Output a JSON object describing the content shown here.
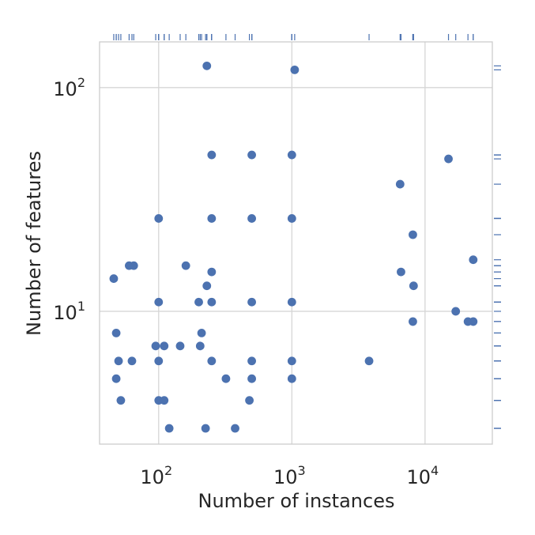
{
  "chart_data": {
    "type": "scatter",
    "title": "",
    "xlabel": "Number of instances",
    "ylabel": "Number of features",
    "xscale": "log",
    "yscale": "log",
    "xlim": [
      36,
      32000
    ],
    "ylim": [
      2.55,
      160
    ],
    "grid": true,
    "legend": "none",
    "marginal_rugs": [
      "top",
      "right"
    ],
    "x_ticks": [
      {
        "value": 100,
        "base": "10",
        "exp": "2"
      },
      {
        "value": 1000,
        "base": "10",
        "exp": "3"
      },
      {
        "value": 10000,
        "base": "10",
        "exp": "4"
      }
    ],
    "y_ticks": [
      {
        "value": 10,
        "base": "10",
        "exp": "1"
      },
      {
        "value": 100,
        "base": "10",
        "exp": "2"
      }
    ],
    "color": "#4c72b0",
    "x": [
      230,
      1050,
      250,
      500,
      1000,
      6500,
      15000,
      100,
      250,
      500,
      1000,
      8100,
      60,
      65,
      160,
      250,
      6600,
      23000,
      46,
      230,
      8200,
      100,
      200,
      250,
      500,
      1000,
      17000,
      8100,
      21000,
      23000,
      48,
      210,
      95,
      110,
      145,
      205,
      100,
      63,
      250,
      500,
      1000,
      3800,
      50,
      320,
      500,
      1000,
      48,
      100,
      110,
      480,
      52,
      120,
      225,
      375
    ],
    "y": [
      125,
      120,
      50,
      50,
      50,
      37,
      48,
      26,
      26,
      26,
      26,
      22,
      16,
      16,
      16,
      15,
      15,
      17,
      14,
      13,
      13,
      11,
      11,
      11,
      11,
      11,
      10,
      9,
      9,
      9,
      8,
      8,
      7,
      7,
      7,
      7,
      6,
      6,
      6,
      6,
      6,
      6,
      6,
      5,
      5,
      5,
      5,
      4,
      4,
      4,
      4,
      3,
      3,
      3
    ]
  }
}
